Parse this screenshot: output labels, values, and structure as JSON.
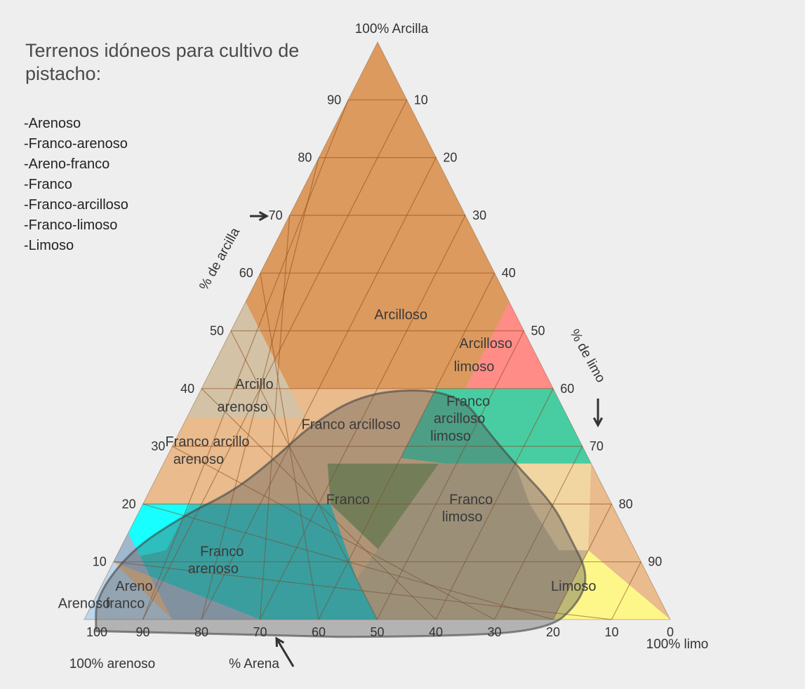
{
  "legend": {
    "title": "Terrenos idóneos para cultivo de pistacho:",
    "items": [
      "-Arenoso",
      "-Franco-arenoso",
      "-Areno-franco",
      "-Franco",
      "-Franco-arcilloso",
      "-Franco-limoso",
      "-Limoso"
    ]
  },
  "chart_data": {
    "type": "ternary",
    "title": "",
    "corner_labels": {
      "top": "100% Arcilla",
      "bottom_left": "100% arenoso",
      "bottom_right": "100% limo"
    },
    "axis_labels": {
      "clay": "% de arcilla",
      "silt": "% de limo",
      "sand": "% Arena"
    },
    "ticks": {
      "clay": [
        "10",
        "20",
        "30",
        "40",
        "50",
        "60",
        "70",
        "80",
        "90"
      ],
      "silt": [
        "10",
        "20",
        "30",
        "40",
        "50",
        "60",
        "70",
        "80",
        "90"
      ],
      "sand": [
        "100",
        "90",
        "80",
        "70",
        "60",
        "50",
        "40",
        "30",
        "20",
        "10",
        "0"
      ]
    },
    "grid_step": 10,
    "classes": [
      {
        "name": "Arcilloso",
        "label": "Arcilloso",
        "color": "#dc9a5f",
        "polygon": [
          [
            100,
            0
          ],
          [
            60,
            0
          ],
          [
            45,
            0
          ]
        ],
        "region": [
          [
            100,
            0
          ],
          [
            60,
            40
          ],
          [
            55,
            45
          ],
          [
            40,
            45
          ],
          [
            40,
            15
          ],
          [
            55,
            0
          ]
        ]
      },
      {
        "name": "Arcilloso limoso",
        "label": "Arcilloso limoso",
        "color": "#ff8c87",
        "region": [
          [
            60,
            40
          ],
          [
            40,
            60
          ],
          [
            40,
            45
          ],
          [
            55,
            45
          ]
        ]
      },
      {
        "name": "Arcillo arenoso",
        "label": "Arcillo arenoso",
        "color": "#d3c2a6",
        "region": [
          [
            55,
            0
          ],
          [
            40,
            15
          ],
          [
            35,
            20
          ],
          [
            35,
            0
          ]
        ]
      },
      {
        "name": "Franco arcillo arenoso",
        "label": "Franco arcillo arenoso",
        "color": "#e8b88a",
        "region": [
          [
            35,
            0
          ],
          [
            35,
            20
          ],
          [
            27,
            28
          ],
          [
            20,
            28
          ],
          [
            20,
            0
          ]
        ]
      },
      {
        "name": "Franco arcilloso",
        "label": "Franco arcilloso",
        "color": "#e8b88a",
        "region": [
          [
            40,
            15
          ],
          [
            40,
            40
          ],
          [
            27,
            40
          ],
          [
            27,
            28
          ]
        ]
      },
      {
        "name": "Franco arcilloso limoso",
        "label": "Franco arcilloso limoso",
        "color": "#4ccba2",
        "region": [
          [
            40,
            40
          ],
          [
            40,
            60
          ],
          [
            27,
            73
          ],
          [
            27,
            40
          ]
        ]
      },
      {
        "name": "Franco",
        "label": "Franco",
        "color": "#8a9a5f",
        "region": [
          [
            27,
            28
          ],
          [
            27,
            45
          ],
          [
            7,
            40
          ],
          [
            7,
            52
          ]
        ]
      },
      {
        "name": "Franco limoso",
        "label": "Franco limoso",
        "color": "#c8b48e",
        "region": [
          [
            27,
            45
          ],
          [
            27,
            73
          ],
          [
            12,
            80
          ],
          [
            0,
            80
          ],
          [
            0,
            50
          ]
        ]
      },
      {
        "name": "Limoso",
        "label": "Limoso",
        "color": "#ffff88",
        "region": [
          [
            12,
            80
          ],
          [
            0,
            100
          ],
          [
            0,
            80
          ]
        ]
      },
      {
        "name": "Franco arenoso",
        "label": "Franco arenoso",
        "color": "#2bcbcb",
        "region": [
          [
            20,
            0
          ],
          [
            20,
            32
          ],
          [
            7,
            40
          ],
          [
            0,
            50
          ],
          [
            0,
            30
          ]
        ]
      },
      {
        "name": "Areno franco",
        "label": "Areno franco",
        "color": "#9fb7cf",
        "region": [
          [
            15,
            0
          ],
          [
            0,
            15
          ],
          [
            0,
            30
          ],
          [
            10,
            0
          ]
        ]
      },
      {
        "name": "Arenoso",
        "label": "Arenoso",
        "color": "#c8d8ea",
        "region": [
          [
            10,
            0
          ],
          [
            0,
            15
          ],
          [
            0,
            0
          ]
        ]
      }
    ],
    "highlight_region": "suitable for pistachio",
    "grid": true
  },
  "colors": {
    "background": "#eeeeee",
    "arcilloso": "#dc9a5f",
    "arcilloso_limoso": "#ff8c87",
    "arcillo_arenoso": "#d3c2a6",
    "franco_arcillo_arenoso": "#e9bb8d",
    "franco_arcilloso": "#e9bb8d",
    "franco_arcilloso_limoso": "#48cda3",
    "franco": "#87985d",
    "franco_limoso": "#c7b38e",
    "franco_limoso_light": "#f2d6a2",
    "limoso": "#fdf78a",
    "franco_arenoso": "#2bcbcb",
    "franco_arenoso_bright": "#17ffff",
    "areno_franco": "#9fb7cf",
    "arenoso": "#bcd6ea",
    "highlight": "#555555"
  }
}
